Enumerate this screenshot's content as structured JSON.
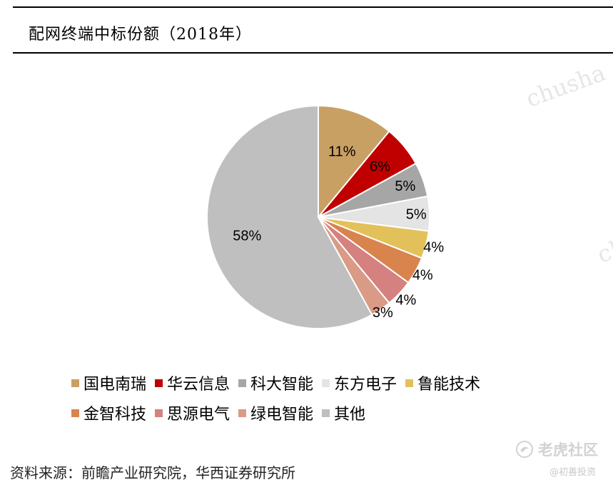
{
  "title": "配网终端中标份额（2018年）",
  "source": "资料来源：前瞻产业研究院，华西证券研究所",
  "watermarks": {
    "text1": "chusha",
    "text2": "ch",
    "brand_name": "老虎社区",
    "handle": "@初善投资"
  },
  "chart_data": {
    "type": "pie",
    "title": "配网终端中标份额（2018年）",
    "start_angle": "12 o'clock",
    "direction": "clockwise",
    "legend_position": "bottom",
    "slices": [
      {
        "label": "国电南瑞",
        "value": 11,
        "display": "11%",
        "color": "#C9A063"
      },
      {
        "label": "华云信息",
        "value": 6,
        "display": "6%",
        "color": "#C00000"
      },
      {
        "label": "科大智能",
        "value": 5,
        "display": "5%",
        "color": "#A6A6A6"
      },
      {
        "label": "东方电子",
        "value": 5,
        "display": "5%",
        "color": "#E4E4E4"
      },
      {
        "label": "鲁能技术",
        "value": 4,
        "display": "4%",
        "color": "#E3C15A"
      },
      {
        "label": "金智科技",
        "value": 4,
        "display": "4%",
        "color": "#D9834D"
      },
      {
        "label": "思源电气",
        "value": 4,
        "display": "4%",
        "color": "#D4817F"
      },
      {
        "label": "绿电智能",
        "value": 3,
        "display": "3%",
        "color": "#D99A86"
      },
      {
        "label": "其他",
        "value": 58,
        "display": "58%",
        "color": "#BFBFBF"
      }
    ]
  }
}
